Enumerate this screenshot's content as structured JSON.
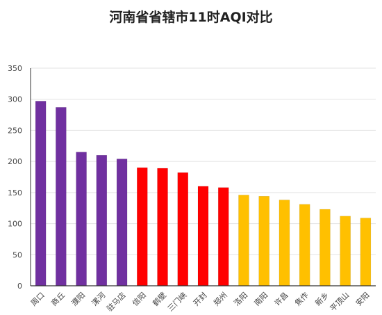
{
  "chart_data": {
    "type": "bar",
    "title": "河南省省辖市11时AQI对比",
    "xlabel": "",
    "ylabel": "",
    "ylim": [
      0,
      350
    ],
    "yticks": [
      0,
      50,
      100,
      150,
      200,
      250,
      300,
      350
    ],
    "grid": true,
    "categories": [
      "周口",
      "商丘",
      "濮阳",
      "漯河",
      "驻马店",
      "信阳",
      "鹤壁",
      "三门峡",
      "开封",
      "郑州",
      "洛阳",
      "南阳",
      "许昌",
      "焦作",
      "新乡",
      "平顶山",
      "安阳"
    ],
    "values": [
      297,
      287,
      215,
      210,
      204,
      190,
      189,
      182,
      160,
      158,
      146,
      144,
      138,
      131,
      123,
      112,
      109
    ],
    "bar_colors": [
      "#7030a0",
      "#7030a0",
      "#7030a0",
      "#7030a0",
      "#7030a0",
      "#ff0000",
      "#ff0000",
      "#ff0000",
      "#ff0000",
      "#ff0000",
      "#ffc000",
      "#ffc000",
      "#ffc000",
      "#ffc000",
      "#ffc000",
      "#ffc000",
      "#ffc000"
    ]
  },
  "colors": {
    "grid": "#e3e3e3",
    "axis": "#333333",
    "text": "#444444"
  }
}
